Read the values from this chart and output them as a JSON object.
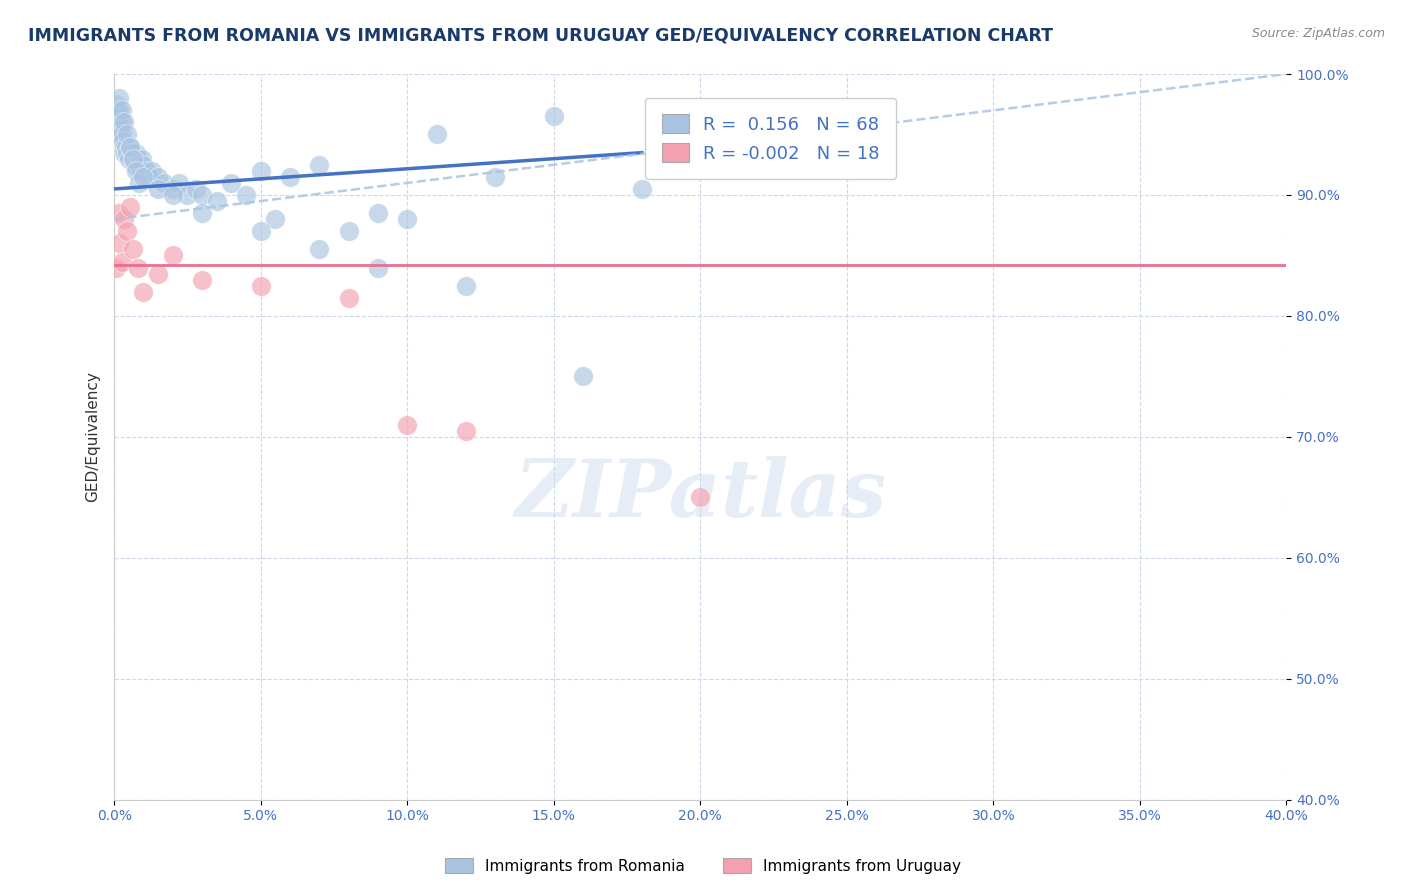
{
  "title": "IMMIGRANTS FROM ROMANIA VS IMMIGRANTS FROM URUGUAY GED/EQUIVALENCY CORRELATION CHART",
  "source": "Source: ZipAtlas.com",
  "ylabel_label": "GED/Equivalency",
  "legend_romania": "Immigrants from Romania",
  "legend_uruguay": "Immigrants from Uruguay",
  "R_romania": 0.156,
  "N_romania": 68,
  "R_uruguay": -0.002,
  "N_uruguay": 18,
  "xlim": [
    0.0,
    40.0
  ],
  "ylim": [
    40.0,
    100.0
  ],
  "yticks": [
    40.0,
    50.0,
    60.0,
    70.0,
    80.0,
    90.0,
    100.0
  ],
  "xticks": [
    0.0,
    5.0,
    10.0,
    15.0,
    20.0,
    25.0,
    30.0,
    35.0,
    40.0
  ],
  "color_romania": "#a8c4e0",
  "color_uruguay": "#f4a0b0",
  "color_trend_romania_solid": "#4472c4",
  "color_trend_romania_dashed": "#a8c4e0",
  "color_trend_uruguay": "#e87090",
  "romania_x": [
    0.05,
    0.08,
    0.1,
    0.12,
    0.15,
    0.18,
    0.2,
    0.22,
    0.25,
    0.28,
    0.3,
    0.32,
    0.35,
    0.4,
    0.45,
    0.5,
    0.55,
    0.6,
    0.65,
    0.7,
    0.75,
    0.8,
    0.85,
    0.9,
    0.95,
    1.0,
    1.1,
    1.2,
    1.3,
    1.5,
    1.7,
    2.0,
    2.2,
    2.5,
    2.8,
    3.0,
    3.5,
    4.0,
    4.5,
    5.0,
    5.5,
    6.0,
    7.0,
    8.0,
    9.0,
    10.0,
    11.0,
    13.0,
    15.0,
    18.0,
    20.0,
    0.15,
    0.25,
    0.35,
    0.45,
    0.55,
    0.65,
    0.75,
    0.85,
    1.0,
    1.5,
    2.0,
    3.0,
    5.0,
    7.0,
    9.0,
    12.0,
    16.0
  ],
  "romania_y": [
    97.5,
    97.0,
    96.5,
    96.0,
    95.5,
    97.0,
    95.0,
    94.5,
    96.0,
    95.0,
    94.5,
    94.0,
    93.5,
    94.0,
    93.5,
    93.0,
    94.0,
    93.5,
    93.0,
    92.5,
    93.5,
    93.0,
    92.5,
    92.0,
    93.0,
    92.5,
    92.0,
    91.5,
    92.0,
    91.5,
    91.0,
    90.5,
    91.0,
    90.0,
    90.5,
    90.0,
    89.5,
    91.0,
    90.0,
    92.0,
    88.0,
    91.5,
    92.5,
    87.0,
    88.5,
    88.0,
    95.0,
    91.5,
    96.5,
    90.5,
    93.0,
    98.0,
    97.0,
    96.0,
    95.0,
    94.0,
    93.0,
    92.0,
    91.0,
    91.5,
    90.5,
    90.0,
    88.5,
    87.0,
    85.5,
    84.0,
    82.5,
    75.0
  ],
  "uruguay_x": [
    0.05,
    0.12,
    0.18,
    0.25,
    0.35,
    0.45,
    0.55,
    0.65,
    0.8,
    1.0,
    1.5,
    2.0,
    3.0,
    5.0,
    8.0,
    10.0,
    12.0,
    20.0
  ],
  "uruguay_y": [
    84.0,
    88.5,
    86.0,
    84.5,
    88.0,
    87.0,
    89.0,
    85.5,
    84.0,
    82.0,
    83.5,
    85.0,
    83.0,
    82.5,
    81.5,
    71.0,
    70.5,
    65.0
  ],
  "trend_romania_x0": 0.0,
  "trend_romania_y0": 90.5,
  "trend_romania_x1": 18.0,
  "trend_romania_y1": 93.5,
  "trend_dashed_x0": 0.0,
  "trend_dashed_y0": 88.0,
  "trend_dashed_x1": 40.0,
  "trend_dashed_y1": 100.0,
  "trend_uruguay_y": 84.2,
  "watermark": "ZIPatlas",
  "background_color": "#ffffff",
  "grid_color": "#c8d4e8",
  "title_color": "#1a3a6b",
  "source_color": "#888888"
}
